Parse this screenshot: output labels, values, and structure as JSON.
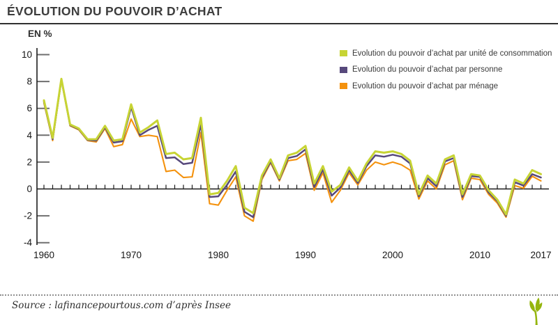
{
  "footer": {
    "source": "Source : lafinancepourtous.com d’après Insee"
  },
  "chart_data": {
    "type": "line",
    "title": "ÉVOLUTION DU POUVOIR D’ACHAT",
    "ylabel": "EN %",
    "xlabel": "",
    "grid": false,
    "legend_position": "top-right",
    "x_range": [
      1960,
      2017
    ],
    "x_tick_years": [
      1960,
      1970,
      1980,
      1990,
      2000,
      2010,
      2017
    ],
    "ylim": [
      -4,
      10
    ],
    "y_ticks": [
      10,
      8,
      6,
      4,
      2,
      0,
      -2,
      -4
    ],
    "series": [
      {
        "name": "Evolution du pouvoir d’achat par unité de consommation",
        "color": "#c7d434",
        "values": [
          6.6,
          3.8,
          8.2,
          4.8,
          4.5,
          3.7,
          3.7,
          4.7,
          3.6,
          3.7,
          6.3,
          4.2,
          4.6,
          5.1,
          2.6,
          2.7,
          2.2,
          2.3,
          5.3,
          -0.4,
          -0.3,
          0.6,
          1.7,
          -1.4,
          -1.8,
          1.0,
          2.2,
          0.8,
          2.5,
          2.7,
          3.2,
          0.4,
          1.7,
          -0.2,
          0.3,
          1.6,
          0.6,
          1.9,
          2.8,
          2.7,
          2.8,
          2.6,
          2.1,
          -0.4,
          1.0,
          0.4,
          2.2,
          2.5,
          -0.4,
          1.1,
          1.0,
          -0.1,
          -0.8,
          -1.9,
          0.7,
          0.4,
          1.4,
          1.1
        ]
      },
      {
        "name": "Evolution du pouvoir d’achat par personne",
        "color": "#57497c",
        "values": [
          6.5,
          3.7,
          8.15,
          4.75,
          4.45,
          3.65,
          3.6,
          4.6,
          3.45,
          3.55,
          6.1,
          4.0,
          4.4,
          4.7,
          2.3,
          2.35,
          1.85,
          1.95,
          4.8,
          -0.6,
          -0.55,
          0.3,
          1.3,
          -1.7,
          -2.1,
          0.85,
          2.05,
          0.7,
          2.3,
          2.45,
          2.95,
          0.15,
          1.45,
          -0.5,
          0.1,
          1.4,
          0.45,
          1.7,
          2.5,
          2.4,
          2.55,
          2.4,
          1.9,
          -0.55,
          0.8,
          0.2,
          2.05,
          2.3,
          -0.6,
          0.95,
          0.9,
          -0.25,
          -0.9,
          -2.0,
          0.5,
          0.25,
          1.1,
          0.85
        ]
      },
      {
        "name": "Evolution du pouvoir d’achat par ménage",
        "color": "#f4920e",
        "values": [
          6.4,
          3.6,
          8.1,
          4.7,
          4.4,
          3.6,
          3.5,
          4.5,
          3.15,
          3.3,
          5.2,
          3.9,
          4.0,
          3.9,
          1.3,
          1.4,
          0.85,
          0.9,
          4.2,
          -1.1,
          -1.2,
          -0.1,
          0.9,
          -2.0,
          -2.4,
          0.7,
          1.95,
          0.6,
          2.1,
          2.2,
          2.65,
          -0.1,
          1.2,
          -1.0,
          -0.1,
          1.2,
          0.3,
          1.4,
          2.0,
          1.8,
          2.0,
          1.8,
          1.4,
          -0.75,
          0.6,
          0.0,
          1.8,
          2.1,
          -0.8,
          0.8,
          0.7,
          -0.4,
          -1.05,
          -2.1,
          0.25,
          0.05,
          0.95,
          0.6
        ]
      }
    ]
  }
}
